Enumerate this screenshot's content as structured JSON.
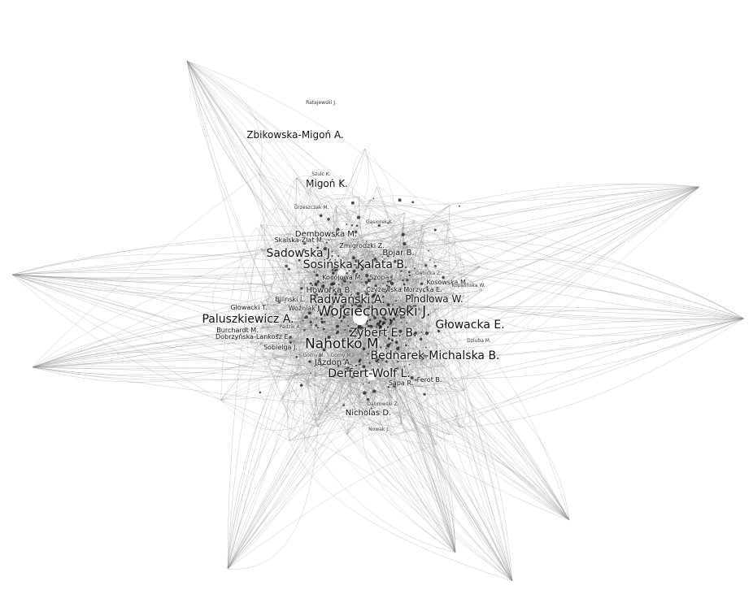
{
  "graph": {
    "colors": {
      "edge": "#8a8a8a",
      "node": "#111111",
      "label": "#111111",
      "hub_node": "#ffffff"
    },
    "labels": [
      "Wojciechowski J.",
      "Nahotko M.",
      "Sosińska-Kalata B.",
      "Sadowska J.",
      "Bednarek-Michalska B.",
      "Głowacka E.",
      "Derfert-Wolf L.",
      "Paluszkiewicz A.",
      "Radwański A.",
      "Zybert E. B.",
      "Pindlowa W.",
      "Zbikowska-Migoń A.",
      "Migoń K.",
      "Dembowska M.",
      "Bojar B.",
      "Nicholas D.",
      "Jazdon A.",
      "Howorka B.",
      "Dobrzyńska-Lankosz E.",
      "Sobielga J.",
      "Burchardt M.",
      "Woźniak J.",
      "Skalska-Zlat M.",
      "Zmigrodzki Z.",
      "Sapa R.",
      "Ferot B.",
      "Gorzycka E.",
      "Kocójowa M.",
      "Czyżewska M.",
      "Szopa J.",
      "Bilinski L.",
      "Głowacki T.",
      "Kosowska M.",
      "Gębicka Z.",
      "Gorny M.",
      "Padzik A.",
      "Górny M.",
      "Dąbrowski Z.",
      "Ratajewski J.",
      "Szulc K.",
      "Kopalińska W.",
      "Nowak J.",
      "Gąsiorek K.",
      "Grzeszczak M.",
      "Dziuba M."
    ]
  }
}
